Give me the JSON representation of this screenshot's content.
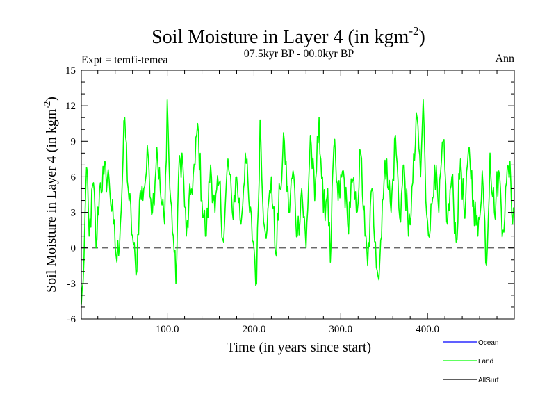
{
  "chart_data": {
    "type": "line",
    "title": "Soil Moisture in Layer 4 (in kgm",
    "title_superscript": "-2",
    "title_close": ")",
    "subtitle": "07.5kyr BP - 00.0kyr BP",
    "expt_label": "Expt = temfi-temea",
    "season_label": "Ann",
    "xlabel": "Time (in years since start)",
    "ylabel": "Soil Moisture in Layer 4 (in kgm",
    "ylabel_superscript": "-2",
    "ylabel_close": ")",
    "xlim": [
      1,
      500
    ],
    "ylim": [
      -6,
      15
    ],
    "x_ticks": [
      100,
      200,
      300,
      400
    ],
    "x_tick_labels": [
      "100.0",
      "200.0",
      "300.0",
      "400.0"
    ],
    "y_ticks": [
      -6,
      -3,
      0,
      3,
      6,
      9,
      12,
      15
    ],
    "y_tick_labels": [
      "-6",
      "-3",
      "0",
      "3",
      "6",
      "9",
      "12",
      "15"
    ],
    "zero_line": 0,
    "legend_position": "bottom-right",
    "series": [
      {
        "name": "Ocean",
        "color": "#0000ff",
        "values": []
      },
      {
        "name": "Land",
        "color": "#00ff00",
        "generation": "annual anomaly series, 500 years, mean ~3.5, range approx -5 to 12.5",
        "keypoints": [
          [
            1,
            -4.8
          ],
          [
            3,
            -3.0
          ],
          [
            5,
            2.0
          ],
          [
            7,
            6.8
          ],
          [
            10,
            1.0
          ],
          [
            15,
            5.5
          ],
          [
            18,
            0.0
          ],
          [
            22,
            5.0
          ],
          [
            27,
            6.2
          ],
          [
            33,
            5.8
          ],
          [
            38,
            2.0
          ],
          [
            42,
            -1.2
          ],
          [
            46,
            2.0
          ],
          [
            51,
            11.0
          ],
          [
            55,
            5.0
          ],
          [
            60,
            1.0
          ],
          [
            64,
            -2.3
          ],
          [
            68,
            4.0
          ],
          [
            73,
            5.0
          ],
          [
            78,
            7.8
          ],
          [
            83,
            3.0
          ],
          [
            88,
            8.5
          ],
          [
            93,
            4.0
          ],
          [
            97,
            2.0
          ],
          [
            100,
            12.5
          ],
          [
            103,
            5.0
          ],
          [
            107,
            1.0
          ],
          [
            110,
            -3.0
          ],
          [
            113,
            6.0
          ],
          [
            117,
            8.0
          ],
          [
            122,
            1.0
          ],
          [
            127,
            4.5
          ],
          [
            132,
            7.0
          ],
          [
            135,
            10.5
          ],
          [
            140,
            4.0
          ],
          [
            145,
            1.0
          ],
          [
            150,
            7.0
          ],
          [
            155,
            3.0
          ],
          [
            160,
            5.5
          ],
          [
            165,
            0.5
          ],
          [
            170,
            7.5
          ],
          [
            175,
            3.0
          ],
          [
            180,
            6.0
          ],
          [
            185,
            2.0
          ],
          [
            190,
            8.0
          ],
          [
            195,
            3.0
          ],
          [
            200,
            0.0
          ],
          [
            203,
            -3.0
          ],
          [
            207,
            10.8
          ],
          [
            210,
            4.0
          ],
          [
            215,
            1.5
          ],
          [
            220,
            6.0
          ],
          [
            225,
            -0.5
          ],
          [
            230,
            5.0
          ],
          [
            235,
            9.0
          ],
          [
            240,
            3.0
          ],
          [
            245,
            6.5
          ],
          [
            250,
            1.0
          ],
          [
            255,
            5.0
          ],
          [
            260,
            0.0
          ],
          [
            265,
            9.5
          ],
          [
            270,
            4.0
          ],
          [
            275,
            11.0
          ],
          [
            280,
            3.0
          ],
          [
            285,
            5.0
          ],
          [
            288,
            -1.2
          ],
          [
            292,
            8.5
          ],
          [
            297,
            4.0
          ],
          [
            303,
            6.5
          ],
          [
            308,
            2.0
          ],
          [
            313,
            5.5
          ],
          [
            318,
            3.0
          ],
          [
            323,
            8.0
          ],
          [
            328,
            1.0
          ],
          [
            331,
            -1.5
          ],
          [
            336,
            5.0
          ],
          [
            340,
            0.5
          ],
          [
            344,
            -2.7
          ],
          [
            348,
            4.0
          ],
          [
            353,
            7.5
          ],
          [
            358,
            3.0
          ],
          [
            363,
            9.5
          ],
          [
            368,
            2.5
          ],
          [
            373,
            7.0
          ],
          [
            378,
            1.0
          ],
          [
            383,
            5.5
          ],
          [
            388,
            11.0
          ],
          [
            392,
            6.0
          ],
          [
            395,
            12.5
          ],
          [
            398,
            4.0
          ],
          [
            403,
            1.5
          ],
          [
            408,
            7.0
          ],
          [
            413,
            3.0
          ],
          [
            418,
            9.0
          ],
          [
            423,
            2.0
          ],
          [
            428,
            6.0
          ],
          [
            433,
            0.5
          ],
          [
            438,
            7.5
          ],
          [
            443,
            2.5
          ],
          [
            448,
            8.5
          ],
          [
            453,
            4.0
          ],
          [
            458,
            1.0
          ],
          [
            463,
            6.5
          ],
          [
            468,
            -1.5
          ],
          [
            472,
            8.0
          ],
          [
            477,
            3.0
          ],
          [
            482,
            6.5
          ],
          [
            487,
            1.5
          ],
          [
            491,
            5.5
          ],
          [
            495,
            7.3
          ],
          [
            498,
            2.0
          ],
          [
            500,
            3.0
          ]
        ]
      },
      {
        "name": "AllSurf",
        "color": "#000000",
        "values": []
      }
    ]
  }
}
